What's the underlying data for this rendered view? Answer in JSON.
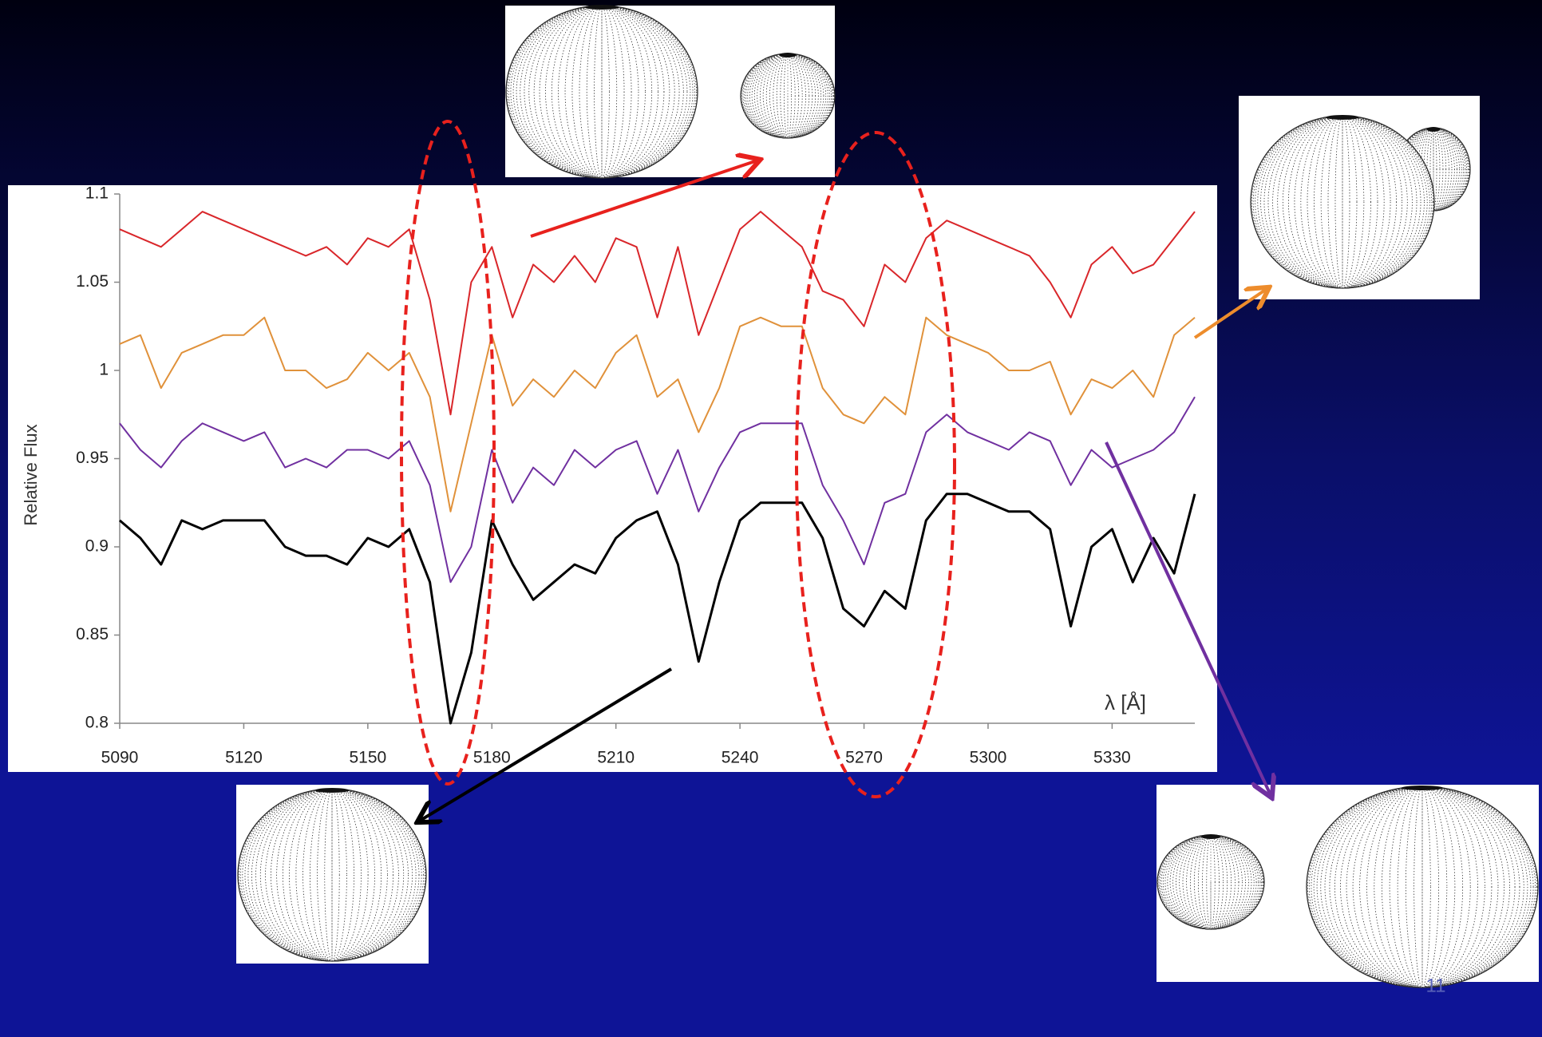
{
  "chart_data": {
    "type": "line",
    "x": [
      5090,
      5095,
      5100,
      5105,
      5110,
      5115,
      5120,
      5125,
      5130,
      5135,
      5140,
      5145,
      5150,
      5155,
      5160,
      5165,
      5170,
      5175,
      5180,
      5185,
      5190,
      5195,
      5200,
      5205,
      5210,
      5215,
      5220,
      5225,
      5230,
      5235,
      5240,
      5245,
      5250,
      5255,
      5260,
      5265,
      5270,
      5275,
      5280,
      5285,
      5290,
      5295,
      5300,
      5305,
      5310,
      5315,
      5320,
      5325,
      5330,
      5335,
      5340,
      5345,
      5350
    ],
    "series": [
      {
        "color": "#d9262a",
        "values": [
          1.08,
          1.075,
          1.07,
          1.08,
          1.09,
          1.085,
          1.08,
          1.075,
          1.07,
          1.065,
          1.07,
          1.06,
          1.075,
          1.07,
          1.08,
          1.04,
          0.975,
          1.05,
          1.07,
          1.03,
          1.06,
          1.05,
          1.065,
          1.05,
          1.075,
          1.07,
          1.03,
          1.07,
          1.02,
          1.05,
          1.08,
          1.09,
          1.08,
          1.07,
          1.045,
          1.04,
          1.025,
          1.06,
          1.05,
          1.075,
          1.085,
          1.08,
          1.075,
          1.07,
          1.065,
          1.05,
          1.03,
          1.06,
          1.07,
          1.055,
          1.06,
          1.075,
          1.09
        ]
      },
      {
        "color": "#e0913a",
        "values": [
          1.015,
          1.02,
          0.99,
          1.01,
          1.015,
          1.02,
          1.02,
          1.03,
          1.0,
          1.0,
          0.99,
          0.995,
          1.01,
          1.0,
          1.01,
          0.985,
          0.92,
          0.97,
          1.02,
          0.98,
          0.995,
          0.985,
          1.0,
          0.99,
          1.01,
          1.02,
          0.985,
          0.995,
          0.965,
          0.99,
          1.025,
          1.03,
          1.025,
          1.025,
          0.99,
          0.975,
          0.97,
          0.985,
          0.975,
          1.03,
          1.02,
          1.015,
          1.01,
          1.0,
          1.0,
          1.005,
          0.975,
          0.995,
          0.99,
          1.0,
          0.985,
          1.02,
          1.03
        ]
      },
      {
        "color": "#7030a0",
        "values": [
          0.97,
          0.955,
          0.945,
          0.96,
          0.97,
          0.965,
          0.96,
          0.965,
          0.945,
          0.95,
          0.945,
          0.955,
          0.955,
          0.95,
          0.96,
          0.935,
          0.88,
          0.9,
          0.955,
          0.925,
          0.945,
          0.935,
          0.955,
          0.945,
          0.955,
          0.96,
          0.93,
          0.955,
          0.92,
          0.945,
          0.965,
          0.97,
          0.97,
          0.97,
          0.935,
          0.915,
          0.89,
          0.925,
          0.93,
          0.965,
          0.975,
          0.965,
          0.96,
          0.955,
          0.965,
          0.96,
          0.935,
          0.955,
          0.945,
          0.95,
          0.955,
          0.965,
          0.985
        ]
      },
      {
        "color": "#000000",
        "values": [
          0.915,
          0.905,
          0.89,
          0.915,
          0.91,
          0.915,
          0.915,
          0.915,
          0.9,
          0.895,
          0.895,
          0.89,
          0.905,
          0.9,
          0.91,
          0.88,
          0.8,
          0.84,
          0.915,
          0.89,
          0.87,
          0.88,
          0.89,
          0.885,
          0.905,
          0.915,
          0.92,
          0.89,
          0.835,
          0.88,
          0.915,
          0.925,
          0.925,
          0.925,
          0.905,
          0.865,
          0.855,
          0.875,
          0.865,
          0.915,
          0.93,
          0.93,
          0.925,
          0.92,
          0.92,
          0.91,
          0.855,
          0.9,
          0.91,
          0.88,
          0.905,
          0.885,
          0.93
        ]
      }
    ],
    "xlim": [
      5090,
      5350
    ],
    "xticks": [
      5090,
      5120,
      5150,
      5180,
      5210,
      5240,
      5270,
      5300,
      5330
    ],
    "ylim": [
      0.8,
      1.1
    ],
    "yticks": [
      0.8,
      0.85,
      0.9,
      0.95,
      1,
      1.05,
      1.1
    ],
    "x_label": "λ [Å]",
    "y_label": "Relative Flux"
  },
  "slide_number": "11"
}
